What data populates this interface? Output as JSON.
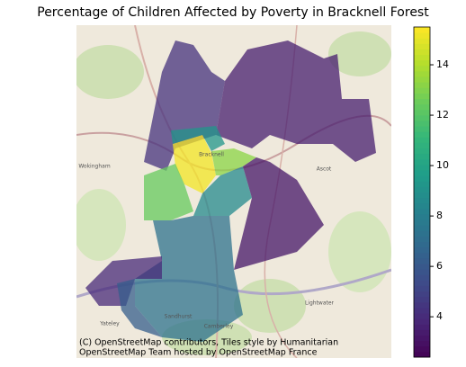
{
  "chart_data": {
    "type": "choropleth",
    "title": "Percentage of Children Affected by Poverty in Bracknell Forest",
    "regions": [
      {
        "value": 4.3
      },
      {
        "value": 3.5
      },
      {
        "value": 15.3
      },
      {
        "value": 12.4
      },
      {
        "value": 13.2
      },
      {
        "value": 8.6
      },
      {
        "value": 3.2
      },
      {
        "value": 7.3
      },
      {
        "value": 3.9
      },
      {
        "value": 6.3
      },
      {
        "value": 9.2
      }
    ],
    "clim": [
      2.4,
      15.5
    ],
    "colorbar_ticks": [
      4,
      6,
      8,
      10,
      12,
      14
    ],
    "colormap": "viridis",
    "place_labels": [
      "Wokingham",
      "Bracknell",
      "Ascot",
      "Sandhurst",
      "Camberley",
      "Yateley",
      "Lightwater"
    ],
    "attribution": [
      "(C) OpenStreetMap contributors, Tiles style by Humanitarian",
      "OpenStreetMap Team hosted by OpenStreetMap France"
    ]
  }
}
